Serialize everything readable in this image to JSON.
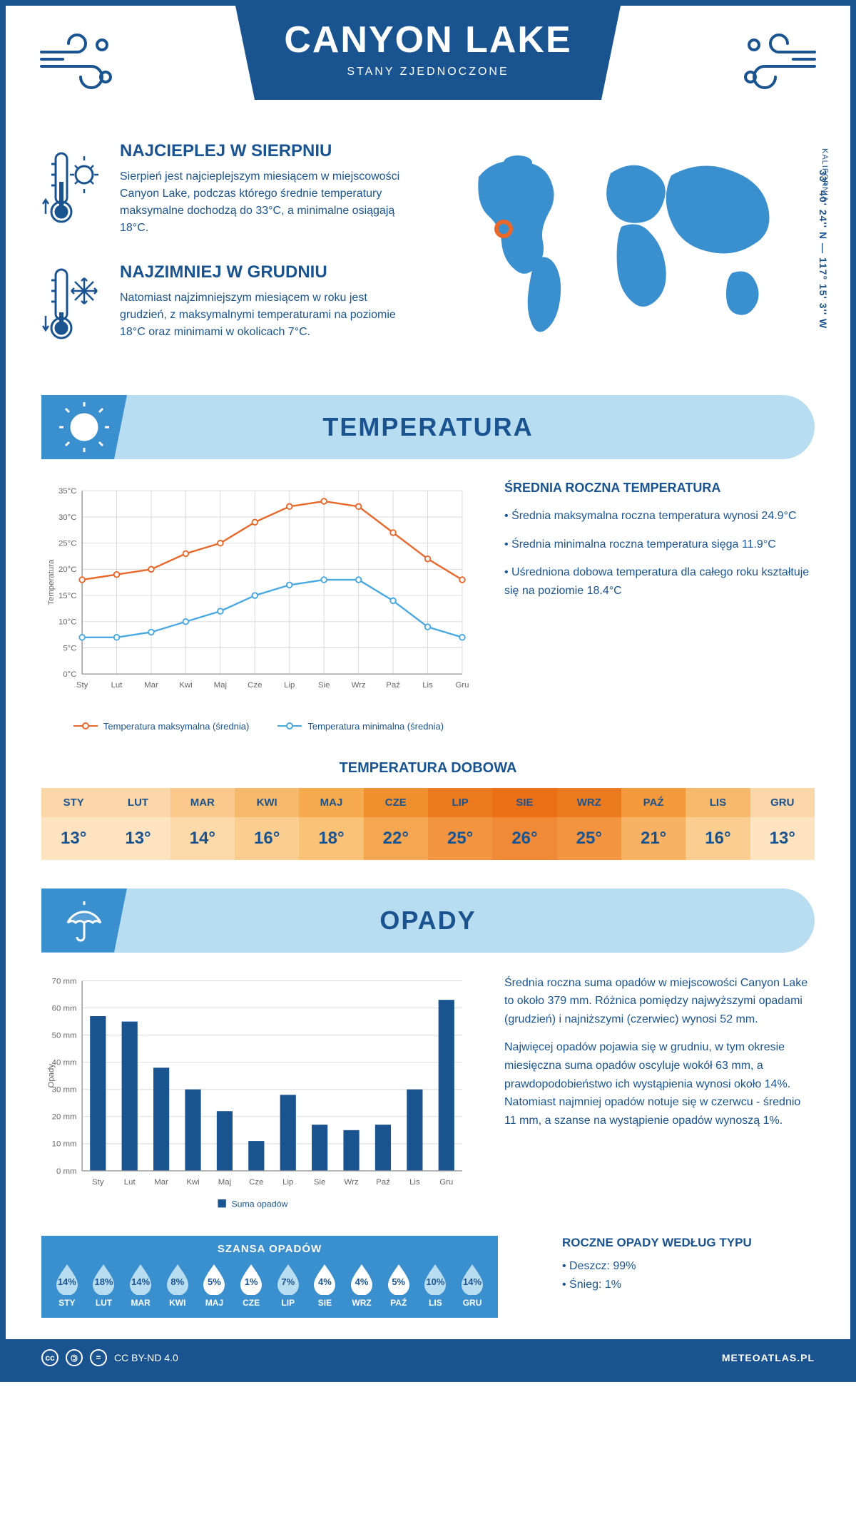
{
  "header": {
    "title": "CANYON LAKE",
    "subtitle": "STANY ZJEDNOCZONE"
  },
  "location": {
    "coords": "33° 40' 24'' N — 117° 15' 3'' W",
    "region": "KALIFORNIA",
    "marker": {
      "cx_pct": 15,
      "cy_pct": 44
    }
  },
  "warmest": {
    "title": "NAJCIEPLEJ W SIERPNIU",
    "text": "Sierpień jest najcieplejszym miesiącem w miejscowości Canyon Lake, podczas którego średnie temperatury maksymalne dochodzą do 33°C, a minimalne osiągają 18°C."
  },
  "coldest": {
    "title": "NAJZIMNIEJ W GRUDNIU",
    "text": "Natomiast najzimniejszym miesiącem w roku jest grudzień, z maksymalnymi temperaturami na poziomie 18°C oraz minimami w okolicach 7°C."
  },
  "temp_section": {
    "title": "TEMPERATURA",
    "chart": {
      "type": "line",
      "months": [
        "Sty",
        "Lut",
        "Mar",
        "Kwi",
        "Maj",
        "Cze",
        "Lip",
        "Sie",
        "Wrz",
        "Paź",
        "Lis",
        "Gru"
      ],
      "y_label": "Temperatura",
      "ylim": [
        0,
        35
      ],
      "ytick_step": 5,
      "ytick_suffix": "°C",
      "background_color": "#ffffff",
      "grid_color": "#d8d8d8",
      "axis_color": "#999999",
      "series": [
        {
          "name": "Temperatura maksymalna (średnia)",
          "color": "#e8682c",
          "values": [
            18,
            19,
            20,
            23,
            25,
            29,
            32,
            33,
            32,
            27,
            22,
            18
          ]
        },
        {
          "name": "Temperatura minimalna (średnia)",
          "color": "#4aa8e0",
          "values": [
            7,
            7,
            8,
            10,
            12,
            15,
            17,
            18,
            18,
            14,
            9,
            7
          ]
        }
      ],
      "line_width": 2.5,
      "marker_size": 4,
      "label_fontsize": 12
    },
    "side": {
      "title": "ŚREDNIA ROCZNA TEMPERATURA",
      "bullets": [
        "• Średnia maksymalna roczna temperatura wynosi 24.9°C",
        "• Średnia minimalna roczna temperatura sięga 11.9°C",
        "• Uśredniona dobowa temperatura dla całego roku kształtuje się na poziomie 18.4°C"
      ]
    },
    "daily_table": {
      "title": "TEMPERATURA DOBOWA",
      "months": [
        "STY",
        "LUT",
        "MAR",
        "KWI",
        "MAJ",
        "CZE",
        "LIP",
        "SIE",
        "WRZ",
        "PAŹ",
        "LIS",
        "GRU"
      ],
      "values": [
        "13°",
        "13°",
        "14°",
        "16°",
        "18°",
        "22°",
        "25°",
        "26°",
        "25°",
        "21°",
        "16°",
        "13°"
      ],
      "head_colors": [
        "#fbd6a8",
        "#fbd6a8",
        "#f9c88a",
        "#f7b96b",
        "#f5ab4e",
        "#f08f2e",
        "#ec7a1f",
        "#ea6f15",
        "#ec7a1f",
        "#f39a3c",
        "#f7b96b",
        "#fbd6a8"
      ],
      "val_colors": [
        "#fde3c0",
        "#fde3c0",
        "#fcd9a8",
        "#fbce8f",
        "#f9c277",
        "#f5a651",
        "#f29440",
        "#f08a36",
        "#f29440",
        "#f7b264",
        "#fbce8f",
        "#fde3c0"
      ]
    }
  },
  "precip_section": {
    "title": "OPADY",
    "chart": {
      "type": "bar",
      "months": [
        "Sty",
        "Lut",
        "Mar",
        "Kwi",
        "Maj",
        "Cze",
        "Lip",
        "Sie",
        "Wrz",
        "Paź",
        "Lis",
        "Gru"
      ],
      "y_label": "Opady",
      "ylim": [
        0,
        70
      ],
      "ytick_step": 10,
      "ytick_suffix": " mm",
      "values": [
        57,
        55,
        38,
        30,
        22,
        11,
        28,
        17,
        15,
        17,
        30,
        63
      ],
      "bar_color": "#1a5490",
      "bar_width": 0.5,
      "grid_color": "#d8d8d8",
      "background_color": "#ffffff",
      "legend_label": "Suma opadów",
      "label_fontsize": 12
    },
    "side": {
      "p1": "Średnia roczna suma opadów w miejscowości Canyon Lake to około 379 mm. Różnica pomiędzy najwyższymi opadami (grudzień) i najniższymi (czerwiec) wynosi 52 mm.",
      "p2": "Najwięcej opadów pojawia się w grudniu, w tym okresie miesięczna suma opadów oscyluje wokół 63 mm, a prawdopodobieństwo ich wystąpienia wynosi około 14%. Natomiast najmniej opadów notuje się w czerwcu - średnio 11 mm, a szanse na wystąpienie opadów wynoszą 1%."
    },
    "chance": {
      "title": "SZANSA OPADÓW",
      "months": [
        "STY",
        "LUT",
        "MAR",
        "KWI",
        "MAJ",
        "CZE",
        "LIP",
        "SIE",
        "WRZ",
        "PAŹ",
        "LIS",
        "GRU"
      ],
      "values": [
        "14%",
        "18%",
        "14%",
        "8%",
        "5%",
        "1%",
        "7%",
        "4%",
        "4%",
        "5%",
        "10%",
        "14%"
      ],
      "pct_numeric": [
        14,
        18,
        14,
        8,
        5,
        1,
        7,
        4,
        4,
        5,
        10,
        14
      ],
      "drop_fill_color": "#b8dcf0",
      "drop_empty_color": "#ffffff",
      "drop_stroke": "#1a5490",
      "threshold_filled": 7
    },
    "by_type": {
      "title": "ROCZNE OPADY WEDŁUG TYPU",
      "lines": [
        "• Deszcz: 99%",
        "• Śnieg: 1%"
      ]
    }
  },
  "footer": {
    "license": "CC BY-ND 4.0",
    "site": "METEOATLAS.PL"
  },
  "colors": {
    "primary": "#1a5490",
    "light_blue": "#b8dcf0",
    "mid_blue": "#3a8fce",
    "orange": "#e8682c"
  }
}
